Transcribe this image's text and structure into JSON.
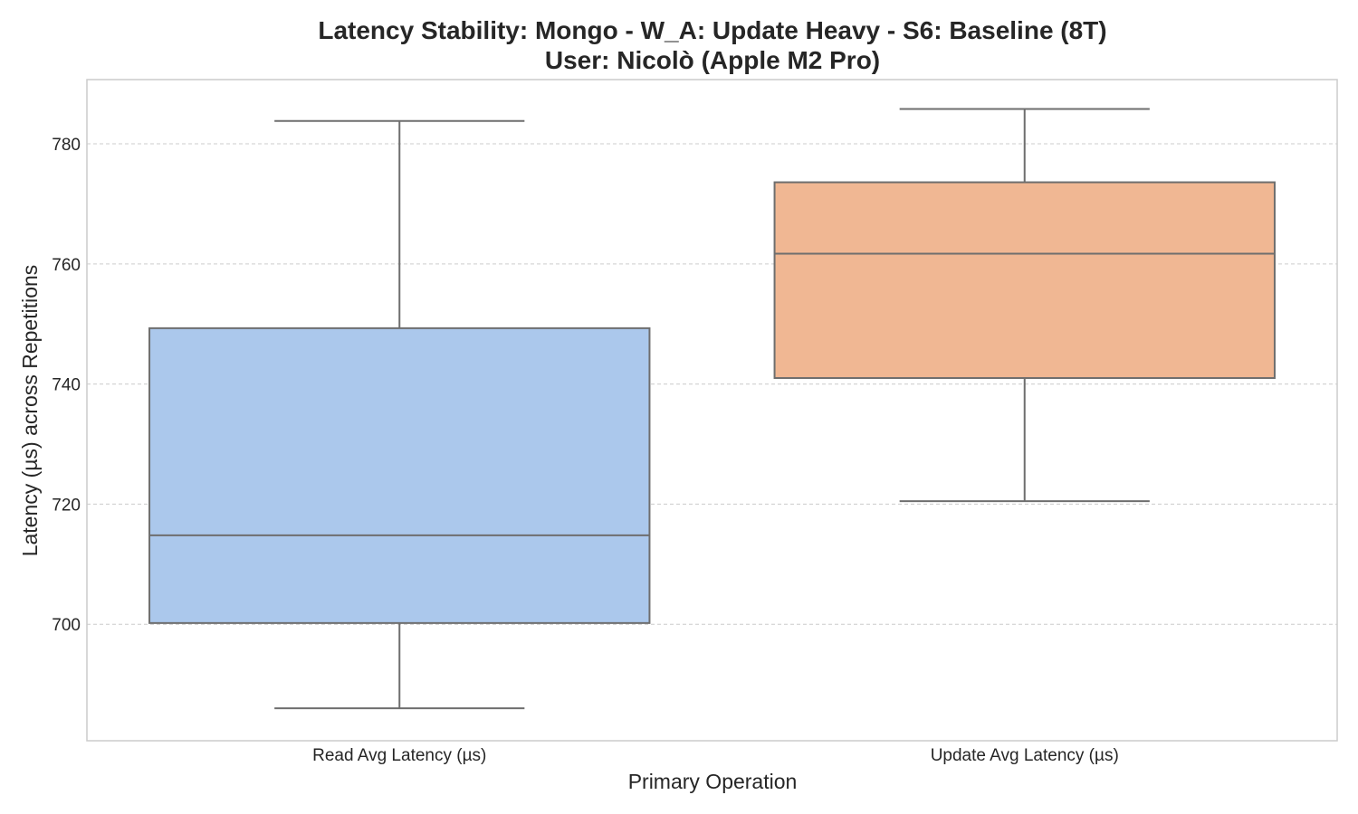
{
  "chart_data": {
    "type": "box",
    "title": "Latency Stability: Mongo - W_A: Update Heavy - S6: Baseline (8T)",
    "subtitle": "User: Nicolò (Apple M2 Pro)",
    "xlabel": "Primary Operation",
    "ylabel": "Latency (µs) across Repetitions",
    "ylim": [
      680.6,
      790.7
    ],
    "yticks": [
      700,
      720,
      740,
      760,
      780
    ],
    "grid": true,
    "categories": [
      "Read Avg Latency (µs)",
      "Update Avg Latency (µs)"
    ],
    "boxes": [
      {
        "category": "Read Avg Latency (µs)",
        "whisker_low": 686.0,
        "q1": 700.2,
        "median": 714.8,
        "q3": 749.3,
        "whisker_high": 783.8,
        "color": "#abc8ec"
      },
      {
        "category": "Update Avg Latency (µs)",
        "whisker_low": 720.5,
        "q1": 741.0,
        "median": 761.7,
        "q3": 773.6,
        "whisker_high": 785.8,
        "color": "#f0b793"
      }
    ]
  }
}
